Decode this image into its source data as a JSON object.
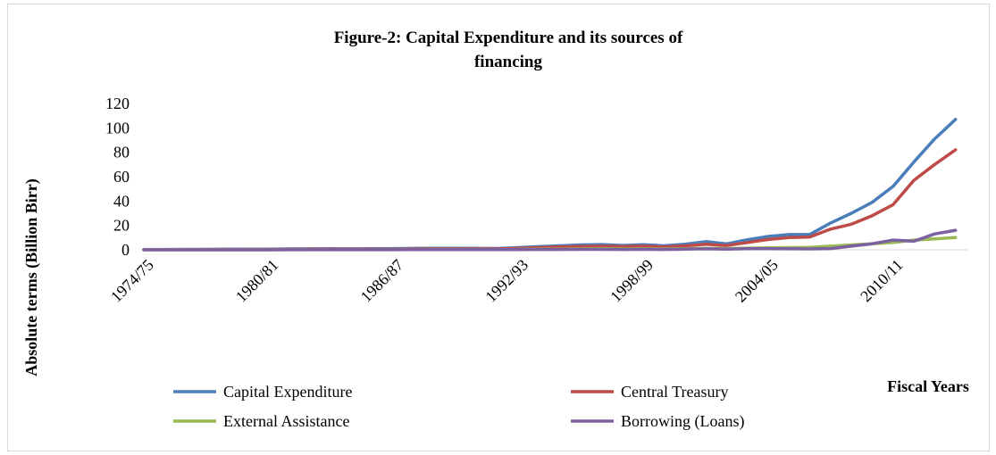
{
  "chart_data": {
    "type": "line",
    "title_lines": [
      "Figure-2: Capital Expenditure and its sources of",
      "financing"
    ],
    "ylabel": "Absolute terms (Billion Birr)",
    "xlabel": "Fiscal Years",
    "ylim": [
      0,
      120
    ],
    "yticks": [
      0,
      20,
      40,
      60,
      80,
      100,
      120
    ],
    "x_tick_labels": [
      "1974/75",
      "1980/81",
      "1986/87",
      "1992/93",
      "1998/99",
      "2004/05",
      "2010/11"
    ],
    "x": [
      "1974/75",
      "1975/76",
      "1976/77",
      "1977/78",
      "1978/79",
      "1979/80",
      "1980/81",
      "1981/82",
      "1982/83",
      "1983/84",
      "1984/85",
      "1985/86",
      "1986/87",
      "1987/88",
      "1988/89",
      "1989/90",
      "1990/91",
      "1991/92",
      "1992/93",
      "1993/94",
      "1994/95",
      "1995/96",
      "1996/97",
      "1997/98",
      "1998/99",
      "1999/00",
      "2000/01",
      "2001/02",
      "2002/03",
      "2003/04",
      "2004/05",
      "2005/06",
      "2006/07",
      "2007/08",
      "2008/09",
      "2009/10",
      "2010/11",
      "2011/12",
      "2012/13",
      "2013/14"
    ],
    "series": [
      {
        "name": "Capital Expenditure",
        "color": "#4a7ebb",
        "values": [
          0.3,
          0.3,
          0.4,
          0.4,
          0.5,
          0.5,
          0.6,
          0.7,
          0.8,
          0.9,
          0.8,
          0.9,
          1.0,
          1.2,
          1.3,
          1.3,
          1.2,
          1.1,
          1.8,
          2.6,
          3.3,
          4.0,
          4.3,
          3.6,
          4.2,
          3.3,
          4.6,
          6.7,
          4.8,
          8.3,
          11.0,
          12.5,
          12.6,
          22.0,
          30.0,
          39.0,
          52.0,
          72.0,
          91.0,
          107.0
        ]
      },
      {
        "name": "Central Treasury",
        "color": "#be4b48",
        "values": [
          0.2,
          0.2,
          0.2,
          0.3,
          0.3,
          0.3,
          0.4,
          0.4,
          0.5,
          0.5,
          0.5,
          0.6,
          0.6,
          0.7,
          0.8,
          0.8,
          0.8,
          0.7,
          1.2,
          1.8,
          2.4,
          2.8,
          3.0,
          2.6,
          3.0,
          2.4,
          3.2,
          4.6,
          3.5,
          6.0,
          8.5,
          10.0,
          10.5,
          17.0,
          21.0,
          28.0,
          37.0,
          57.0,
          70.0,
          82.0
        ]
      },
      {
        "name": "External Assistance",
        "color": "#98b954",
        "values": [
          0.1,
          0.1,
          0.1,
          0.1,
          0.1,
          0.1,
          0.1,
          0.1,
          0.2,
          0.2,
          0.2,
          0.2,
          0.3,
          0.3,
          0.3,
          0.3,
          0.3,
          0.2,
          0.4,
          0.5,
          0.6,
          0.8,
          0.9,
          0.7,
          0.8,
          0.7,
          0.9,
          1.2,
          1.0,
          1.4,
          1.6,
          1.8,
          2.0,
          3.0,
          4.0,
          5.0,
          6.0,
          8.0,
          9.0,
          10.0
        ]
      },
      {
        "name": "Borrowing (Loans)",
        "color": "#7d60a0",
        "values": [
          0.0,
          0.0,
          0.0,
          0.0,
          0.0,
          0.0,
          0.0,
          0.1,
          0.1,
          0.1,
          0.1,
          0.1,
          0.1,
          0.2,
          0.2,
          0.2,
          0.2,
          0.2,
          0.2,
          0.3,
          0.3,
          0.4,
          0.4,
          0.3,
          0.4,
          0.3,
          0.5,
          0.8,
          0.6,
          0.9,
          0.9,
          0.8,
          0.7,
          1.0,
          3.0,
          5.0,
          8.0,
          7.0,
          13.0,
          16.0
        ]
      }
    ],
    "grid": false,
    "legend_position": "bottom"
  }
}
